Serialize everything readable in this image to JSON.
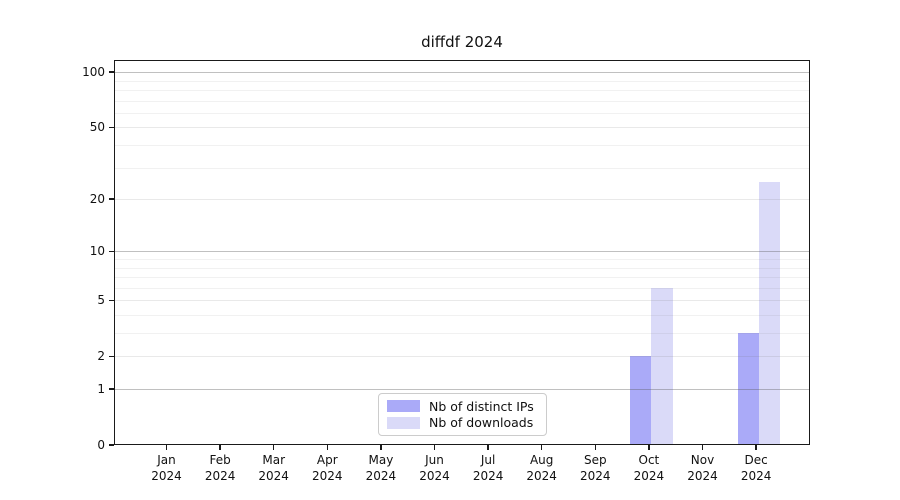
{
  "chart_data": {
    "type": "bar",
    "title": "diffdf 2024",
    "months": [
      "Jan",
      "Feb",
      "Mar",
      "Apr",
      "May",
      "Jun",
      "Jul",
      "Aug",
      "Sep",
      "Oct",
      "Nov",
      "Dec"
    ],
    "year": "2024",
    "series": [
      {
        "name": "Nb of distinct IPs",
        "color": "#aaaaf8",
        "values": [
          0,
          0,
          0,
          0,
          0,
          0,
          0,
          0,
          0,
          2,
          0,
          3
        ]
      },
      {
        "name": "Nb of downloads",
        "color": "#dadaf8",
        "values": [
          0,
          0,
          0,
          0,
          0,
          0,
          0,
          0,
          0,
          6,
          0,
          25
        ]
      }
    ],
    "y_axis": {
      "scale": "log10(1+x)",
      "major_ticks": [
        0,
        1,
        2,
        5,
        10,
        20,
        50,
        100
      ],
      "decade_ticks": [
        1,
        10,
        100
      ],
      "minor_gridlines": [
        3,
        4,
        6,
        7,
        8,
        9,
        30,
        40,
        60,
        70,
        80,
        90
      ],
      "range": [
        0,
        117
      ]
    },
    "legend": {
      "position": "lower center"
    },
    "grid": true
  }
}
